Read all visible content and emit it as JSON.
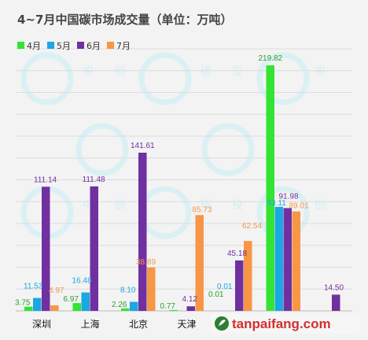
{
  "chart_data": {
    "type": "bar",
    "title": "4~7月中国碳市场成交量（单位：万吨）",
    "categories": [
      "深圳",
      "上海",
      "北京",
      "天津",
      "",
      "",
      ""
    ],
    "series": [
      {
        "name": "4月",
        "color": "#33e433",
        "values": [
          3.75,
          6.97,
          2.26,
          0.77,
          0.01,
          219.82,
          null
        ]
      },
      {
        "name": "5月",
        "color": "#1aa7e3",
        "values": [
          11.53,
          16.48,
          8.1,
          null,
          0.01,
          93.11,
          null
        ]
      },
      {
        "name": "6月",
        "color": "#7030a0",
        "values": [
          111.14,
          111.48,
          141.61,
          4.12,
          45.18,
          91.98,
          14.5
        ]
      },
      {
        "name": "7月",
        "color": "#f79646",
        "values": [
          4.97,
          null,
          38.89,
          85.73,
          62.54,
          89.01,
          null
        ]
      }
    ],
    "ylim": [
      0,
      240
    ],
    "grid": true,
    "legend_position": "top-left"
  },
  "watermark": {
    "chars": [
      "中",
      "创",
      "碳",
      "投"
    ]
  },
  "logo": {
    "text": "tanpaifang.com",
    "icon": "leaf-icon"
  }
}
